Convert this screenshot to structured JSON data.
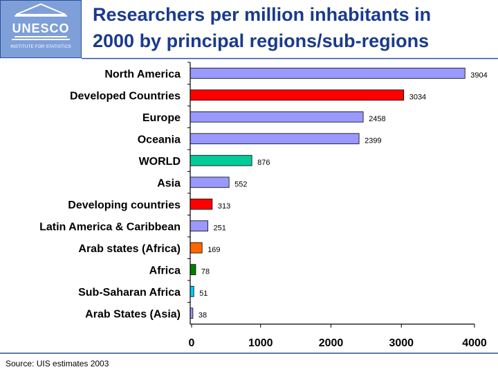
{
  "header": {
    "logo_text": "UNESCO",
    "logo_subtext": "INSTITUTE FOR STATISTICS",
    "title_line1": "Researchers per million inhabitants in",
    "title_line2": "2000 by principal regions/sub-regions"
  },
  "footer": {
    "source": "Source: UIS estimates 2003"
  },
  "colors": {
    "title": "#1a3a8c",
    "header_line": "#2a4f9c",
    "logo_bg": "#7e9fd8"
  },
  "chart_data": {
    "type": "bar",
    "orientation": "horizontal",
    "title": "Researchers per million inhabitants in 2000 by principal regions/sub-regions",
    "xlabel": "",
    "ylabel": "",
    "xlim": [
      0,
      4000
    ],
    "xticks": [
      0,
      1000,
      2000,
      3000,
      4000
    ],
    "categories": [
      "North America",
      "Developed Countries",
      "Europe",
      "Oceania",
      "WORLD",
      "Asia",
      "Developing countries",
      "Latin America & Caribbean",
      "Arab states (Africa)",
      "Africa",
      "Sub-Saharan Africa",
      "Arab States (Asia)"
    ],
    "values": [
      3904,
      3034,
      2458,
      2399,
      876,
      552,
      313,
      251,
      169,
      78,
      51,
      38
    ],
    "value_labels": [
      "3904",
      "3034",
      "2458",
      "2399",
      "876",
      "552",
      "313",
      "251",
      "169",
      "78",
      "51",
      "38"
    ],
    "colors": [
      "#9999ff",
      "#ff0000",
      "#9999ff",
      "#9999ff",
      "#00cc99",
      "#9999ff",
      "#ff0000",
      "#9999ff",
      "#ff6600",
      "#008000",
      "#00ccff",
      "#9999ff"
    ],
    "grid": false,
    "legend": "none"
  }
}
